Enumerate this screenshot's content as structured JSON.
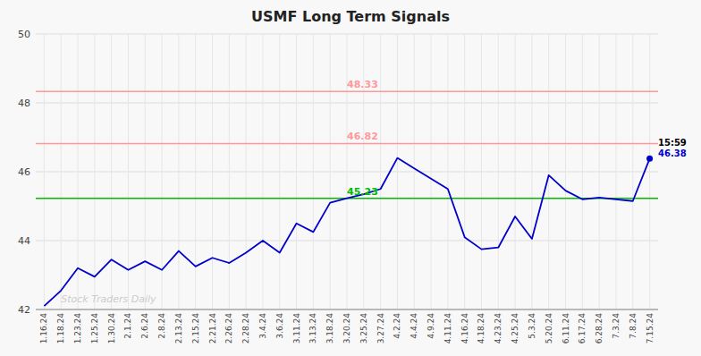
{
  "chart_data": {
    "type": "line",
    "title": "USMF Long Term Signals",
    "categories": [
      "1.16.24",
      "1.18.24",
      "1.23.24",
      "1.25.24",
      "1.30.24",
      "2.1.24",
      "2.6.24",
      "2.8.24",
      "2.13.24",
      "2.15.24",
      "2.21.24",
      "2.26.24",
      "2.28.24",
      "3.4.24",
      "3.6.24",
      "3.11.24",
      "3.13.24",
      "3.18.24",
      "3.20.24",
      "3.25.24",
      "3.27.24",
      "4.2.24",
      "4.4.24",
      "4.9.24",
      "4.11.24",
      "4.16.24",
      "4.18.24",
      "4.23.24",
      "4.25.24",
      "5.3.24",
      "5.20.24",
      "6.11.24",
      "6.17.24",
      "6.28.24",
      "7.3.24",
      "7.8.24",
      "7.15.24"
    ],
    "values": [
      42.1,
      42.55,
      43.2,
      42.95,
      43.45,
      43.15,
      43.4,
      43.15,
      43.7,
      43.25,
      43.5,
      43.35,
      43.65,
      44.0,
      43.65,
      44.5,
      44.25,
      45.1,
      45.23,
      45.35,
      45.5,
      46.4,
      46.1,
      45.8,
      45.5,
      44.1,
      43.75,
      43.8,
      44.7,
      44.05,
      45.9,
      45.45,
      45.2,
      45.25,
      45.2,
      45.15,
      46.38
    ],
    "color": "#0000cc",
    "ylim": [
      42,
      50
    ],
    "yticks": [
      42,
      44,
      46,
      48,
      50
    ],
    "grid": true,
    "reference_lines": [
      {
        "value": 45.23,
        "label": "45.23",
        "color": "#00bb00"
      },
      {
        "value": 46.82,
        "label": "46.82",
        "color": "#ff9999"
      },
      {
        "value": 48.33,
        "label": "48.33",
        "color": "#ff9999"
      }
    ],
    "annotation": "15:59",
    "last_value_label": "46.38",
    "watermark": "Stock Traders Daily"
  }
}
